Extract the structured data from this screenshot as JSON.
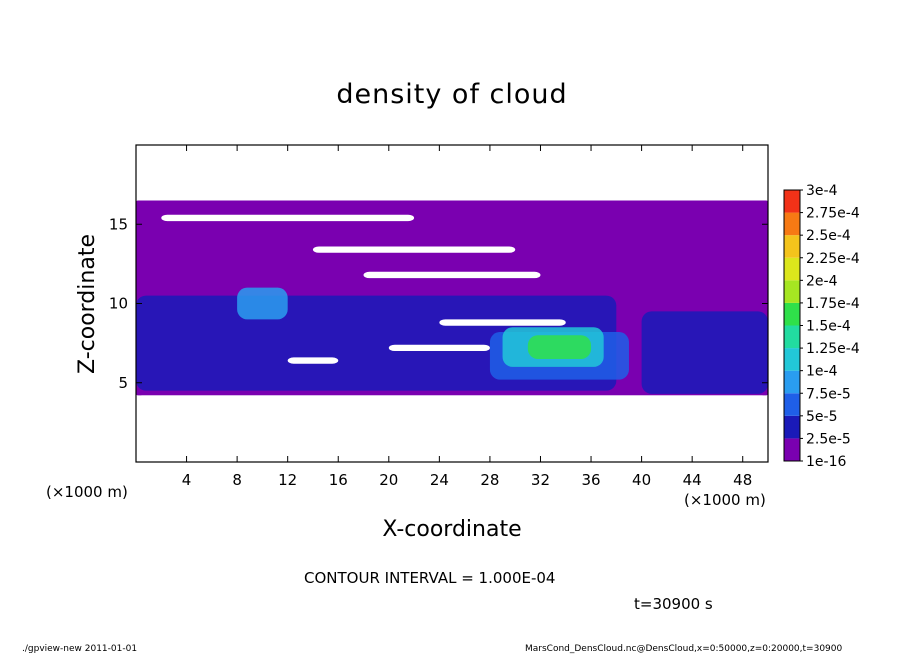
{
  "chart_data": {
    "type": "heatmap",
    "title": "density of cloud",
    "xlabel": "X-coordinate",
    "ylabel": "Z-coordinate",
    "x_unit": "(×1000 m)",
    "x_unit_right": "(×1000 m)",
    "xlim": [
      0,
      50
    ],
    "ylim": [
      0,
      20
    ],
    "x_ticks": [
      4,
      8,
      12,
      16,
      20,
      24,
      28,
      32,
      36,
      40,
      44,
      48
    ],
    "y_ticks": [
      5,
      10,
      15
    ],
    "colorbar": {
      "labels": [
        "1e-16",
        "2.5e-5",
        "5e-5",
        "7.5e-5",
        "1e-4",
        "1.25e-4",
        "1.5e-4",
        "1.75e-4",
        "2e-4",
        "2.25e-4",
        "2.5e-4",
        "2.75e-4",
        "3e-4"
      ],
      "colors": [
        "#7a00b0",
        "#1a1ab8",
        "#1f5fe8",
        "#2a9df0",
        "#22c8d8",
        "#22dca0",
        "#2fe04a",
        "#a6e622",
        "#dce61c",
        "#f4c41c",
        "#f77a14",
        "#f23218",
        "#f47a7a"
      ]
    },
    "contour_interval": "CONTOUR INTERVAL = 1.000E-04",
    "time": "t=30900 s",
    "regions": [
      {
        "level": 0,
        "x": [
          0,
          50
        ],
        "z": [
          4.2,
          16.5
        ]
      },
      {
        "level": 1,
        "x": [
          0,
          38
        ],
        "z": [
          4.5,
          10.5
        ]
      },
      {
        "level": 1,
        "x": [
          40,
          50
        ],
        "z": [
          4.3,
          9.5
        ]
      },
      {
        "level": 2,
        "x": [
          28,
          39
        ],
        "z": [
          5.2,
          8.2
        ]
      },
      {
        "level": 3,
        "x": [
          8,
          12
        ],
        "z": [
          9,
          11
        ]
      },
      {
        "level": 4,
        "x": [
          29,
          37
        ],
        "z": [
          6.0,
          8.5
        ]
      },
      {
        "level": 6,
        "x": [
          31,
          36
        ],
        "z": [
          6.5,
          8.0
        ]
      }
    ]
  },
  "footer": {
    "left": "./gpview-new  2011-01-01",
    "right": "MarsCond_DensCloud.nc@DensCloud,x=0:50000,z=0:20000,t=30900"
  }
}
